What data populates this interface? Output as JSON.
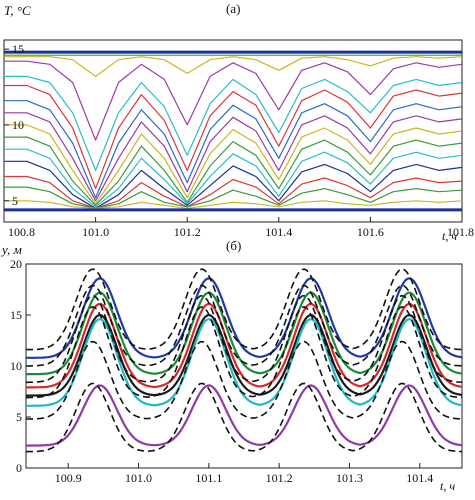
{
  "chart_data": [
    {
      "type": "line",
      "panel_label": "(а)",
      "ylabel": "T, °C",
      "xlabel": "t, ч",
      "xlim": [
        100.8,
        101.8
      ],
      "ylim": [
        3.6,
        15.6
      ],
      "xticks": [
        {
          "value": 100.8,
          "label": "100.8"
        },
        {
          "value": 101.0,
          "label": "101.0"
        },
        {
          "value": 101.2,
          "label": "101.2"
        },
        {
          "value": 101.4,
          "label": "101.4"
        },
        {
          "value": 101.6,
          "label": "101.6"
        },
        {
          "value": 101.8,
          "label": "101.8"
        }
      ],
      "yticks": [
        {
          "value": 5,
          "label": "5"
        },
        {
          "value": 10,
          "label": "10"
        },
        {
          "value": 15,
          "label": "15"
        }
      ],
      "grid": false,
      "x": [
        100.8,
        100.85,
        100.9,
        100.95,
        101.0,
        101.05,
        101.1,
        101.15,
        101.2,
        101.25,
        101.3,
        101.35,
        101.4,
        101.45,
        101.5,
        101.55,
        101.6,
        101.65,
        101.7,
        101.75,
        101.8
      ],
      "series": [
        {
          "color": "#1a2f9a",
          "values": [
            14.8,
            14.8,
            14.8,
            14.8,
            14.8,
            14.8,
            14.8,
            14.8,
            14.8,
            14.8,
            14.8,
            14.8,
            14.8,
            14.8,
            14.8,
            14.8,
            14.8,
            14.8,
            14.8,
            14.8,
            14.8
          ]
        },
        {
          "color": "#3a9a3a",
          "values": [
            14.6,
            14.6,
            14.6,
            14.6,
            14.6,
            14.6,
            14.6,
            14.6,
            14.6,
            14.6,
            14.6,
            14.6,
            14.6,
            14.6,
            14.6,
            14.6,
            14.6,
            14.6,
            14.6,
            14.6,
            14.6
          ]
        },
        {
          "color": "#c8b820",
          "values": [
            14.5,
            14.5,
            14.5,
            14.3,
            13.2,
            14.3,
            14.5,
            14.3,
            13.4,
            14.3,
            14.5,
            14.3,
            13.6,
            14.4,
            14.5,
            14.3,
            13.9,
            14.4,
            14.5,
            14.4,
            14.5
          ]
        },
        {
          "color": "#9a3aa8",
          "values": [
            14.2,
            14.2,
            14.0,
            12.8,
            9.0,
            12.8,
            14.0,
            13.0,
            10.0,
            13.2,
            14.1,
            13.4,
            11.0,
            13.6,
            14.1,
            13.5,
            12.0,
            13.7,
            14.1,
            13.8,
            14.0
          ]
        },
        {
          "color": "#2abcc8",
          "values": [
            13.2,
            13.2,
            12.8,
            10.8,
            7.0,
            10.8,
            12.8,
            11.2,
            8.0,
            11.4,
            13.0,
            12.0,
            9.5,
            12.4,
            13.0,
            12.2,
            10.8,
            12.6,
            13.0,
            12.6,
            12.8
          ]
        },
        {
          "color": "#d83838",
          "values": [
            12.6,
            12.6,
            12.0,
            9.8,
            5.8,
            9.8,
            12.0,
            10.3,
            7.0,
            10.6,
            12.2,
            11.3,
            8.6,
            11.6,
            12.3,
            11.5,
            9.8,
            11.9,
            12.3,
            11.9,
            12.1
          ]
        },
        {
          "color": "#2a6ac8",
          "values": [
            11.6,
            11.6,
            11.0,
            8.8,
            5.2,
            8.8,
            11.0,
            9.4,
            6.2,
            9.7,
            11.3,
            10.4,
            7.8,
            10.8,
            11.4,
            10.6,
            8.9,
            11.0,
            11.4,
            11.0,
            11.2
          ]
        },
        {
          "color": "#9a3aa8",
          "values": [
            10.8,
            10.8,
            10.2,
            7.8,
            5.0,
            7.8,
            10.2,
            8.6,
            5.6,
            8.9,
            10.5,
            9.6,
            7.0,
            10.0,
            10.6,
            9.8,
            8.1,
            10.2,
            10.6,
            10.2,
            10.4
          ]
        },
        {
          "color": "#c8b820",
          "values": [
            10.0,
            10.0,
            9.4,
            7.0,
            4.8,
            7.0,
            9.4,
            7.8,
            5.2,
            8.1,
            9.7,
            8.8,
            6.4,
            9.2,
            9.8,
            9.0,
            7.4,
            9.4,
            9.8,
            9.4,
            9.6
          ]
        },
        {
          "color": "#3a9a3a",
          "values": [
            9.2,
            9.2,
            8.6,
            6.3,
            4.7,
            6.3,
            8.6,
            7.0,
            4.9,
            7.3,
            8.9,
            8.0,
            5.8,
            8.4,
            9.0,
            8.2,
            6.7,
            8.6,
            9.0,
            8.6,
            8.8
          ]
        },
        {
          "color": "#2abcc8",
          "values": [
            8.4,
            8.4,
            7.8,
            5.8,
            4.6,
            5.8,
            7.8,
            6.4,
            4.8,
            6.6,
            8.1,
            7.3,
            5.3,
            7.6,
            8.2,
            7.5,
            6.1,
            7.8,
            8.2,
            7.8,
            8.0
          ]
        },
        {
          "color": "#1a2f9a",
          "values": [
            7.6,
            7.6,
            7.0,
            5.4,
            4.5,
            5.4,
            7.0,
            5.8,
            4.7,
            6.0,
            7.3,
            6.6,
            5.0,
            6.9,
            7.4,
            6.8,
            5.6,
            7.0,
            7.4,
            7.0,
            7.2
          ]
        },
        {
          "color": "#d83838",
          "values": [
            6.6,
            6.6,
            6.2,
            5.0,
            4.5,
            5.0,
            6.2,
            5.3,
            4.6,
            5.4,
            6.4,
            5.9,
            4.8,
            6.1,
            6.5,
            6.0,
            5.2,
            6.2,
            6.5,
            6.2,
            6.3
          ]
        },
        {
          "color": "#3a9a3a",
          "values": [
            5.9,
            5.9,
            5.6,
            4.8,
            4.5,
            4.8,
            5.6,
            4.9,
            4.6,
            5.0,
            5.7,
            5.3,
            4.7,
            5.5,
            5.8,
            5.4,
            4.9,
            5.6,
            5.8,
            5.6,
            5.7
          ]
        },
        {
          "color": "#c8b820",
          "values": [
            5.0,
            5.0,
            4.9,
            4.6,
            4.5,
            4.6,
            4.9,
            4.7,
            4.5,
            4.7,
            4.9,
            4.8,
            4.6,
            4.9,
            5.0,
            4.8,
            4.7,
            4.9,
            5.0,
            4.9,
            5.0
          ]
        },
        {
          "color": "#1a2f9a",
          "values": [
            4.4,
            4.4,
            4.4,
            4.4,
            4.4,
            4.4,
            4.4,
            4.4,
            4.4,
            4.4,
            4.4,
            4.4,
            4.4,
            4.4,
            4.4,
            4.4,
            4.4,
            4.4,
            4.4,
            4.4,
            4.4
          ]
        }
      ]
    },
    {
      "type": "line",
      "panel_label": "(б)",
      "ylabel": "y, м",
      "xlabel": "t, ч",
      "xlim": [
        100.84,
        101.46
      ],
      "ylim": [
        0,
        20
      ],
      "xticks": [
        {
          "value": 100.9,
          "label": "100.9"
        },
        {
          "value": 101.0,
          "label": "101.0"
        },
        {
          "value": 101.1,
          "label": "101.1"
        },
        {
          "value": 101.2,
          "label": "101.2"
        },
        {
          "value": 101.3,
          "label": "101.3"
        },
        {
          "value": 101.4,
          "label": "101.4"
        }
      ],
      "yticks": [
        {
          "value": 0,
          "label": "0"
        },
        {
          "value": 5,
          "label": "5"
        },
        {
          "value": 10,
          "label": "10"
        },
        {
          "value": 15,
          "label": "15"
        },
        {
          "value": 20,
          "label": "20"
        }
      ],
      "grid": false,
      "peaks": [
        100.945,
        101.1,
        101.245,
        101.385
      ],
      "series": [
        {
          "color": "#1f3aa8",
          "dash": false,
          "base": 10.8,
          "peak": 18.6,
          "shift": 0.0
        },
        {
          "color": "#1b8a3a",
          "dash": false,
          "base": 9.2,
          "peak": 17.2,
          "shift": 0.0
        },
        {
          "color": "#d82828",
          "dash": false,
          "base": 7.9,
          "peak": 16.1,
          "shift": 0.0
        },
        {
          "color": "#1a1a1a",
          "dash": false,
          "base": 7.1,
          "peak": 15.0,
          "shift": 0.0
        },
        {
          "color": "#1fb8c4",
          "dash": false,
          "base": 6.1,
          "peak": 14.6,
          "shift": 0.0
        },
        {
          "color": "#8e3aa8",
          "dash": false,
          "base": 2.2,
          "peak": 8.1,
          "shift": 0.0
        },
        {
          "color": "#111111",
          "dash": true,
          "base": 11.6,
          "peak": 19.5,
          "shift": -0.01
        },
        {
          "color": "#111111",
          "dash": true,
          "base": 10.0,
          "peak": 17.9,
          "shift": -0.01
        },
        {
          "color": "#111111",
          "dash": true,
          "base": 8.4,
          "peak": 16.9,
          "shift": -0.01
        },
        {
          "color": "#111111",
          "dash": true,
          "base": 6.9,
          "peak": 15.8,
          "shift": -0.01
        },
        {
          "color": "#111111",
          "dash": true,
          "base": 4.8,
          "peak": 12.4,
          "shift": -0.01
        },
        {
          "color": "#111111",
          "dash": true,
          "base": 1.6,
          "peak": 8.3,
          "shift": -0.01
        }
      ]
    }
  ]
}
